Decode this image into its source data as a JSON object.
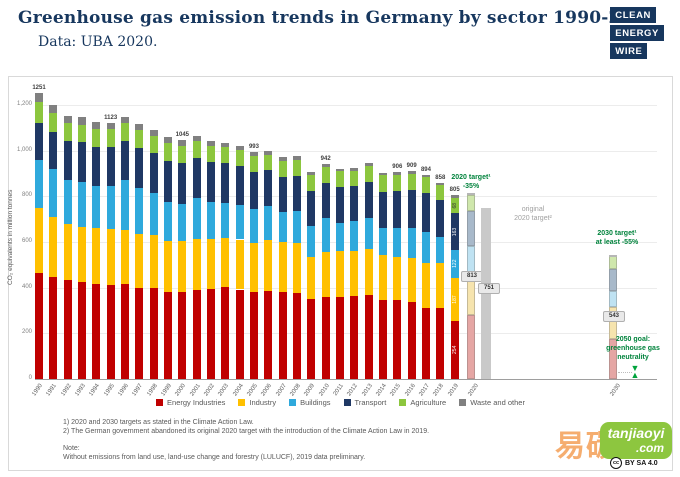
{
  "header": {
    "title": "Greenhouse gas emission trends in Germany by sector 1990-2019",
    "subtitle": "Data: UBA 2020.",
    "logo_lines": [
      "CLEAN",
      "ENERGY",
      "WIRE"
    ]
  },
  "chart_data": {
    "type": "bar",
    "stacked": true,
    "title": "Greenhouse gas emission trends in Germany by sector 1990-2019",
    "subtitle": "Data: UBA 2020.",
    "ylabel": "CO₂ equivalents in million tonnes",
    "ylim": [
      0,
      1270
    ],
    "grid": true,
    "legend_position": "bottom",
    "yticks": [
      0,
      200,
      400,
      600,
      800,
      1000,
      1200
    ],
    "ytick_labels": [
      "0",
      "200",
      "400",
      "600",
      "800",
      "1,000",
      "1,200"
    ],
    "years": [
      1990,
      1991,
      1992,
      1993,
      1994,
      1995,
      1996,
      1997,
      1998,
      1999,
      2000,
      2001,
      2002,
      2003,
      2004,
      2005,
      2006,
      2007,
      2008,
      2009,
      2010,
      2011,
      2012,
      2013,
      2014,
      2015,
      2016,
      2017,
      2018,
      2019
    ],
    "series": [
      {
        "name": "Energy Industries",
        "color": "#c00000",
        "values": [
          466,
          446,
          432,
          427,
          418,
          412,
          414,
          399,
          399,
          381,
          380,
          389,
          395,
          401,
          392,
          380,
          387,
          380,
          378,
          352,
          360,
          358,
          362,
          368,
          347,
          347,
          338,
          313,
          311,
          254
        ]
      },
      {
        "name": "Industry",
        "color": "#ffc000",
        "values": [
          284,
          263,
          248,
          238,
          242,
          244,
          239,
          238,
          232,
          223,
          225,
          224,
          219,
          218,
          219,
          215,
          220,
          219,
          218,
          183,
          195,
          203,
          199,
          200,
          196,
          188,
          194,
          196,
          195,
          187
        ]
      },
      {
        "name": "Buildings",
        "color": "#2fa9dc",
        "values": [
          210,
          209,
          192,
          199,
          186,
          190,
          218,
          201,
          183,
          172,
          161,
          179,
          160,
          154,
          150,
          151,
          149,
          131,
          139,
          135,
          150,
          124,
          129,
          137,
          119,
          128,
          131,
          136,
          116,
          122
        ]
      },
      {
        "name": "Transport",
        "color": "#1f3864",
        "values": [
          163,
          164,
          169,
          172,
          170,
          171,
          172,
          173,
          175,
          181,
          181,
          178,
          176,
          171,
          170,
          160,
          158,
          155,
          154,
          153,
          153,
          155,
          154,
          157,
          159,
          160,
          165,
          168,
          162,
          163
        ]
      },
      {
        "name": "Agriculture",
        "color": "#8cc63e",
        "values": [
          90,
          82,
          79,
          78,
          78,
          77,
          77,
          78,
          77,
          77,
          75,
          74,
          72,
          71,
          70,
          69,
          69,
          70,
          71,
          69,
          70,
          69,
          69,
          70,
          71,
          71,
          70,
          70,
          64,
          68
        ]
      },
      {
        "name": "Waste and other",
        "color": "#808080",
        "values": [
          38,
          36,
          34,
          32,
          31,
          29,
          28,
          27,
          26,
          25,
          23,
          22,
          21,
          20,
          19,
          18,
          17,
          16,
          15,
          15,
          14,
          13,
          13,
          12,
          12,
          12,
          11,
          11,
          10,
          11
        ]
      }
    ],
    "totals": [
      1251,
      1200,
      1154,
      1146,
      1125,
      1123,
      1148,
      1116,
      1092,
      1059,
      1045,
      1066,
      1043,
      1035,
      1020,
      993,
      1000,
      971,
      975,
      907,
      942,
      922,
      926,
      944,
      904,
      906,
      909,
      894,
      858,
      805
    ],
    "labeled_total_years": [
      1990,
      1995,
      2000,
      2005,
      2010,
      2015,
      2016,
      2017,
      2018,
      2019
    ],
    "segment_labels_2019": [
      "254",
      "187",
      "122",
      "163",
      "68"
    ],
    "targets": [
      {
        "name": "2020 target",
        "title_lines": [
          "2020 target¹",
          "-35%"
        ],
        "value": 813,
        "value_label": "813",
        "style": "faded-stack",
        "segments": [
          280,
          186,
          118,
          150,
          70,
          9
        ],
        "x_label": "2020"
      },
      {
        "name": "original 2020 target",
        "title_lines": [
          "original",
          "2020 target²"
        ],
        "value": 751,
        "value_label": "751",
        "style": "solid-gray",
        "color": "#c9c9c9"
      },
      {
        "name": "2030 target",
        "title_lines": [
          "2030 target¹",
          "at least -55%"
        ],
        "value": 543,
        "value_label": "543",
        "style": "faded-stack",
        "segments": [
          175,
          140,
          70,
          95,
          58,
          5
        ],
        "x_label": "2030"
      }
    ],
    "faded_colors": [
      "#e5a6a4",
      "#f6e4ae",
      "#bfe2f2",
      "#a8b9ca",
      "#cfe7ac",
      "#dddddd"
    ],
    "goal_2050": {
      "lines": [
        "2050 goal:",
        "greenhouse gas",
        "neutrality"
      ]
    }
  },
  "footnotes": {
    "lines": [
      "1) 2020 and 2030 targets as stated in the Climate Action Law.",
      "2) The German government abandoned its original 2020 target with the introduction of the Climate Action Law in 2019.",
      "",
      "Note:",
      "Without emissions from land use, land-use change and forestry (LULUCF), 2019 data preliminary."
    ]
  },
  "watermark": {
    "cjk": "易碳家",
    "brand_top": "tanjiaoyi",
    "brand_bottom": ".com"
  },
  "license": {
    "badge": "cc",
    "text": "BY SA 4.0"
  }
}
